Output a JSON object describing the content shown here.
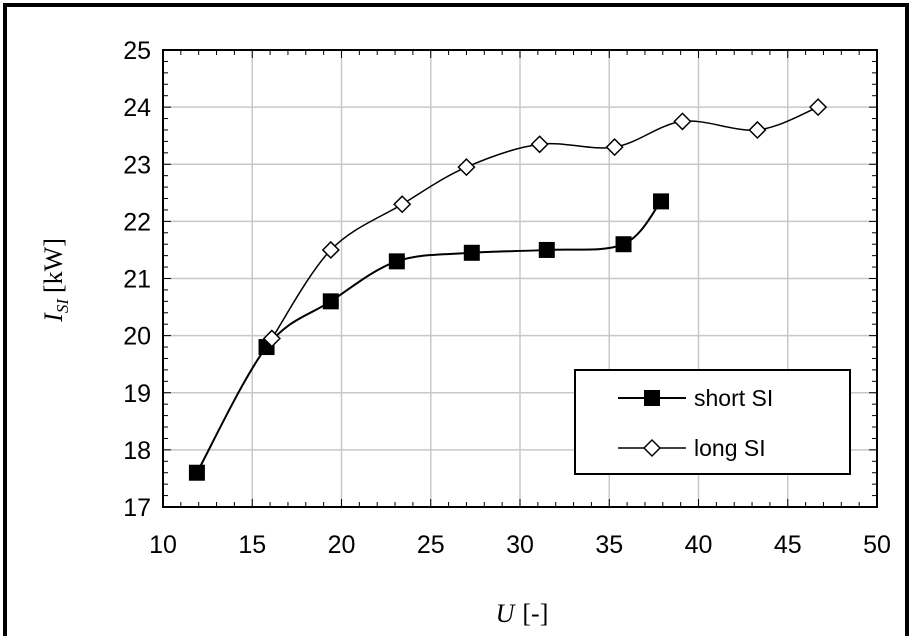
{
  "chart_data": {
    "type": "line",
    "title": "",
    "xlabel": {
      "main": "U",
      "unit": "[-]"
    },
    "ylabel": {
      "main": "I",
      "subscript": "SI",
      "unit": "[kW]"
    },
    "xlim": [
      10,
      50
    ],
    "ylim": [
      17,
      25
    ],
    "xticks": [
      10,
      15,
      20,
      25,
      30,
      35,
      40,
      45,
      50
    ],
    "yticks": [
      17,
      18,
      19,
      20,
      21,
      22,
      23,
      24,
      25
    ],
    "grid": true,
    "legend_position": "bottom-right",
    "series": [
      {
        "name": "short SI",
        "marker": "filled-square",
        "color": "#000000",
        "points": [
          [
            11.9,
            17.6
          ],
          [
            15.8,
            19.8
          ],
          [
            19.4,
            20.6
          ],
          [
            23.1,
            21.3
          ],
          [
            27.3,
            21.45
          ],
          [
            31.5,
            21.5
          ],
          [
            35.8,
            21.6
          ],
          [
            37.9,
            22.35
          ]
        ]
      },
      {
        "name": "long SI",
        "marker": "hollow-diamond",
        "color": "#000000",
        "points": [
          [
            16.1,
            19.95
          ],
          [
            19.4,
            21.5
          ],
          [
            23.4,
            22.3
          ],
          [
            27.0,
            22.95
          ],
          [
            31.1,
            23.35
          ],
          [
            35.3,
            23.3
          ],
          [
            39.1,
            23.75
          ],
          [
            43.3,
            23.6
          ],
          [
            46.7,
            24.0
          ]
        ]
      }
    ]
  }
}
